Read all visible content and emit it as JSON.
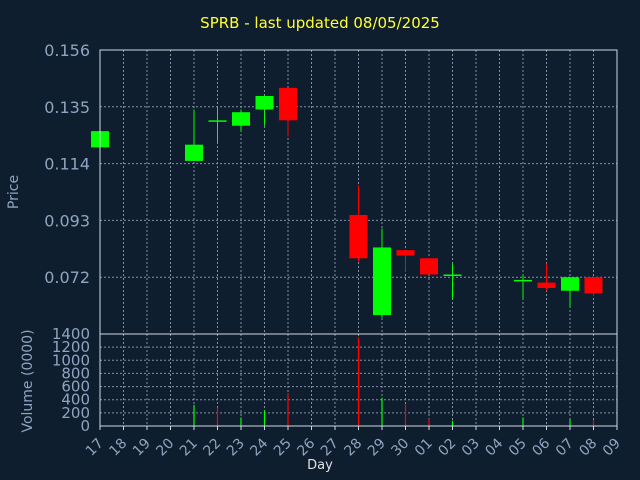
{
  "chart_data": {
    "title": "SPRB - last updated 08/05/2025",
    "xlabel": "Day",
    "price_panel": {
      "type": "candlestick",
      "ylabel": "Price",
      "ylim": [
        0.051,
        0.156
      ],
      "yticks": [
        "0.156",
        "0.135",
        "0.114",
        "0.093",
        "0.072"
      ],
      "grid": true
    },
    "volume_panel": {
      "type": "bar",
      "ylabel": "Volume (0000)",
      "ylim": [
        0,
        1400
      ],
      "yticks": [
        "1400",
        "1200",
        "1000",
        "800",
        "600",
        "400",
        "200",
        "0"
      ],
      "grid": true
    },
    "x_ticks": [
      "17",
      "18",
      "19",
      "20",
      "21",
      "22",
      "23",
      "24",
      "25",
      "26",
      "27",
      "28",
      "29",
      "30",
      "01",
      "02",
      "03",
      "04",
      "05",
      "06",
      "07",
      "08",
      "09"
    ],
    "candles": [
      {
        "day": "17",
        "open": 0.12,
        "high": 0.126,
        "low": 0.12,
        "close": 0.126
      },
      {
        "day": "21",
        "open": 0.115,
        "high": 0.134,
        "low": 0.115,
        "close": 0.121
      },
      {
        "day": "22",
        "open": 0.13,
        "high": 0.135,
        "low": 0.122,
        "close": 0.13
      },
      {
        "day": "23",
        "open": 0.128,
        "high": 0.134,
        "low": 0.126,
        "close": 0.133
      },
      {
        "day": "24",
        "open": 0.134,
        "high": 0.139,
        "low": 0.128,
        "close": 0.139
      },
      {
        "day": "25",
        "open": 0.142,
        "high": 0.142,
        "low": 0.124,
        "close": 0.13
      },
      {
        "day": "28",
        "open": 0.095,
        "high": 0.106,
        "low": 0.078,
        "close": 0.079
      },
      {
        "day": "29",
        "open": 0.058,
        "high": 0.09,
        "low": 0.057,
        "close": 0.083
      },
      {
        "day": "30",
        "open": 0.082,
        "high": 0.082,
        "low": 0.074,
        "close": 0.08
      },
      {
        "day": "01",
        "open": 0.079,
        "high": 0.079,
        "low": 0.073,
        "close": 0.073
      },
      {
        "day": "02",
        "open": 0.073,
        "high": 0.077,
        "low": 0.064,
        "close": 0.073
      },
      {
        "day": "05",
        "open": 0.071,
        "high": 0.073,
        "low": 0.064,
        "close": 0.071
      },
      {
        "day": "06",
        "open": 0.07,
        "high": 0.077,
        "low": 0.067,
        "close": 0.068
      },
      {
        "day": "07",
        "open": 0.067,
        "high": 0.072,
        "low": 0.061,
        "close": 0.072
      },
      {
        "day": "08",
        "open": 0.072,
        "high": 0.072,
        "low": 0.065,
        "close": 0.066
      }
    ],
    "volume": [
      {
        "day": "21",
        "value": 320,
        "direction": "up"
      },
      {
        "day": "22",
        "value": 280,
        "direction": "down"
      },
      {
        "day": "23",
        "value": 130,
        "direction": "up"
      },
      {
        "day": "24",
        "value": 240,
        "direction": "up"
      },
      {
        "day": "25",
        "value": 500,
        "direction": "down"
      },
      {
        "day": "28",
        "value": 1350,
        "direction": "down"
      },
      {
        "day": "29",
        "value": 430,
        "direction": "up"
      },
      {
        "day": "30",
        "value": 330,
        "direction": "down"
      },
      {
        "day": "01",
        "value": 110,
        "direction": "down"
      },
      {
        "day": "02",
        "value": 80,
        "direction": "up"
      },
      {
        "day": "05",
        "value": 130,
        "direction": "up"
      },
      {
        "day": "07",
        "value": 110,
        "direction": "up"
      },
      {
        "day": "08",
        "value": 90,
        "direction": "down"
      }
    ]
  },
  "colors": {
    "background": "#0f1e2e",
    "up": "#00ff00",
    "down": "#ff0000",
    "title": "#ffff33",
    "axis_text": "#8fa4c0",
    "grid": "#8090a8",
    "frame": "#d0d8e0"
  }
}
